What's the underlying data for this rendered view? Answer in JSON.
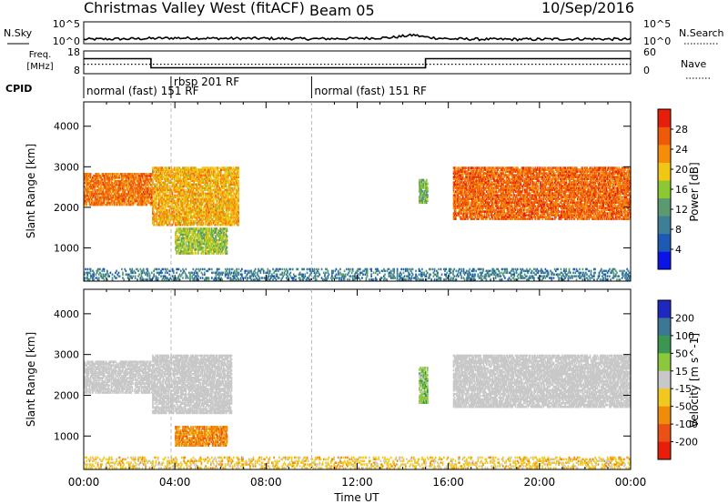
{
  "header": {
    "title": "Christmas Valley West (fitACF)",
    "beam": "Beam 05",
    "date": "10/Sep/2016"
  },
  "panels": {
    "noise_label_left": "N.Sky",
    "noise_label_right": "N.Search",
    "noise_ticks_left": [
      "10^5",
      "10^0"
    ],
    "noise_ticks_right": [
      "10^5",
      "10^0"
    ],
    "freq_label_line1": "Freq.",
    "freq_label_line2": "[MHz]",
    "freq_ticks": [
      "18",
      "8"
    ],
    "nave_label": "Nave",
    "nave_ticks": [
      "60",
      "0"
    ],
    "cpid_label": "CPID",
    "cpid_segments": [
      {
        "start_hour": 0.0,
        "label": "normal (fast) 151 RF"
      },
      {
        "start_hour": 3.83,
        "label": "rbsp 201 RF"
      },
      {
        "start_hour": 10.0,
        "label": "normal (fast) 151 RF"
      }
    ]
  },
  "colors": {
    "power": [
      "#0a14e6",
      "#1e5ab4",
      "#3c7f96",
      "#5a9a6e",
      "#8cc832",
      "#f0c814",
      "#f58c0a",
      "#ee5a0a",
      "#e61e0a"
    ],
    "velocity": [
      "#1e28be",
      "#3c7896",
      "#3c9650",
      "#8cc83c",
      "#c8c8c8",
      "#f0c81e",
      "#f08c0a",
      "#eb5014",
      "#e61e0a"
    ],
    "ground_scatter": "#c8c8c8"
  },
  "chart_data": [
    {
      "type": "line",
      "name": "noise-panel",
      "x": [
        0,
        2,
        4,
        6,
        8,
        10,
        12,
        13.5,
        14.5,
        15,
        16,
        18,
        20,
        22,
        24
      ],
      "series": [
        {
          "name": "N.Sky",
          "values": [
            1.0,
            1.1,
            1.3,
            1.2,
            1.2,
            1.1,
            1.2,
            1.4,
            2.0,
            1.5,
            1.1,
            1.0,
            1.0,
            1.1,
            1.0
          ]
        }
      ],
      "ylim": [
        0,
        5
      ]
    },
    {
      "type": "line",
      "name": "frequency-panel",
      "x": [
        0,
        2.95,
        2.95,
        15.0,
        15.0,
        24
      ],
      "series": [
        {
          "name": "Freq",
          "values": [
            14.6,
            14.6,
            10.6,
            10.6,
            14.6,
            14.6
          ]
        },
        {
          "name": "Nave",
          "values": [
            25,
            25,
            25,
            25,
            25,
            25
          ]
        }
      ],
      "ylim": [
        8,
        18
      ]
    },
    {
      "type": "heatmap",
      "name": "power-panel",
      "ylabel": "Slant Range [km]",
      "xlim": [
        0,
        24
      ],
      "ylim": [
        180,
        4600
      ],
      "yticks": [
        1000,
        2000,
        3000,
        4000
      ],
      "colorbar": {
        "label": "Power [dB]",
        "ticks": [
          4,
          8,
          12,
          16,
          20,
          24,
          28
        ],
        "range": [
          0,
          32
        ]
      },
      "scatter_regions": [
        {
          "hour": [
            0.0,
            3.0
          ],
          "range_km": [
            2050,
            2850
          ],
          "value": 26
        },
        {
          "hour": [
            3.0,
            6.8
          ],
          "range_km": [
            1550,
            3000
          ],
          "value": 22
        },
        {
          "hour": [
            4.0,
            6.3
          ],
          "range_km": [
            850,
            1500
          ],
          "value": 16
        },
        {
          "hour": [
            14.7,
            15.1
          ],
          "range_km": [
            2100,
            2700
          ],
          "value": 14
        },
        {
          "hour": [
            16.2,
            24.0
          ],
          "range_km": [
            1700,
            3000
          ],
          "value": 27
        },
        {
          "hour": [
            0.0,
            24.0
          ],
          "range_km": [
            200,
            500
          ],
          "value": 8
        }
      ]
    },
    {
      "type": "heatmap",
      "name": "velocity-panel",
      "ylabel": "Slant Range [km]",
      "xlabel": "Time UT",
      "xlim": [
        0,
        24
      ],
      "ylim": [
        180,
        4600
      ],
      "yticks": [
        1000,
        2000,
        3000,
        4000
      ],
      "xticks": [
        "00:00",
        "04:00",
        "08:00",
        "12:00",
        "16:00",
        "20:00",
        "00:00"
      ],
      "colorbar": {
        "label": "Velocity [m s^-1]",
        "ticks": [
          "200",
          "100",
          "50",
          "15",
          "-15",
          "-50",
          "-100",
          "-200"
        ]
      },
      "scatter_regions": [
        {
          "hour": [
            0.0,
            3.0
          ],
          "range_km": [
            2050,
            2850
          ],
          "value": "ground"
        },
        {
          "hour": [
            3.0,
            6.5
          ],
          "range_km": [
            1550,
            3000
          ],
          "value": "ground"
        },
        {
          "hour": [
            4.0,
            6.3
          ],
          "range_km": [
            750,
            1250
          ],
          "value": -50
        },
        {
          "hour": [
            14.7,
            15.1
          ],
          "range_km": [
            1800,
            2700
          ],
          "value": 30
        },
        {
          "hour": [
            16.2,
            24.0
          ],
          "range_km": [
            1700,
            3000
          ],
          "value": "ground"
        },
        {
          "hour": [
            0.0,
            24.0
          ],
          "range_km": [
            200,
            500
          ],
          "value": -15
        }
      ]
    }
  ]
}
